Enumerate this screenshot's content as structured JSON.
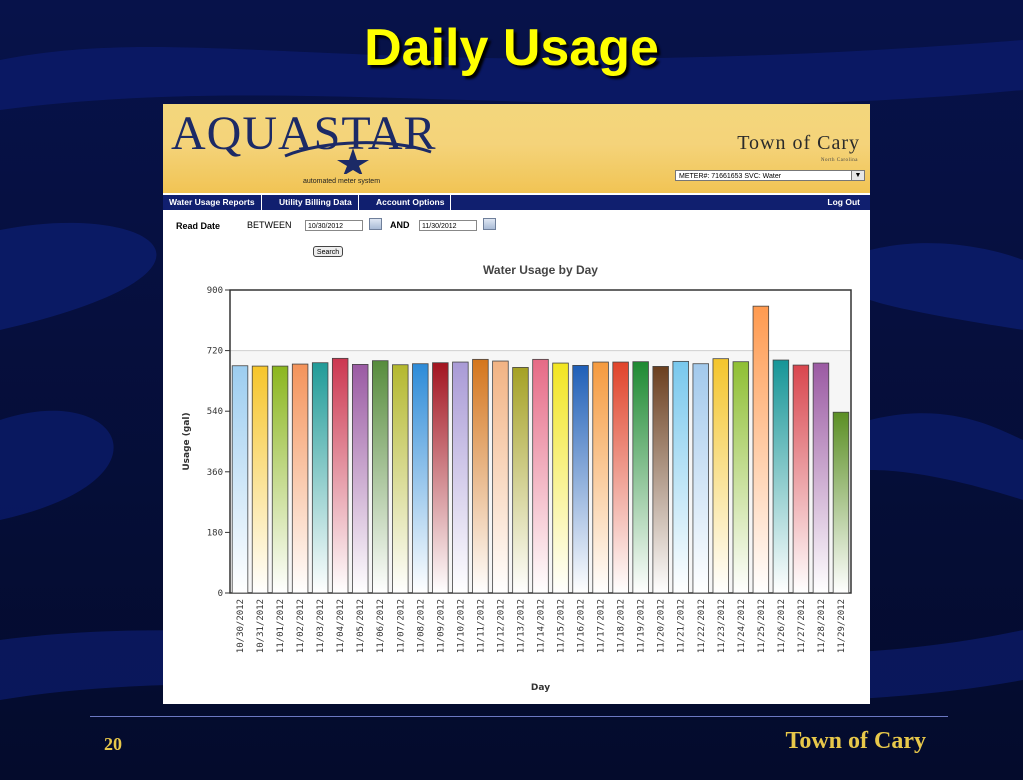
{
  "slide": {
    "title": "Daily Usage",
    "page_number": "20",
    "footer_brand": "Town of Cary"
  },
  "app": {
    "logo_text": "AQUASTAR",
    "logo_subtitle": "automated meter system",
    "town_name": "Town of Cary",
    "town_state": "North Carolina",
    "meter_select_value": "METER#: 71661653 SVC: Water"
  },
  "nav": {
    "items": [
      "Water Usage Reports",
      "Utility Billing Data",
      "Account Options"
    ],
    "logout": "Log Out"
  },
  "filter": {
    "read_date_label": "Read Date",
    "between_label": "BETWEEN",
    "start_date": "10/30/2012",
    "and_label": "AND",
    "end_date": "11/30/2012",
    "search_label": "Search"
  },
  "colors": {
    "background": "#06103e",
    "title": "#ffff00",
    "banner": "#f3d37a",
    "nav": "#101f6f",
    "footer_text": "#e8c84a"
  },
  "chart_data": {
    "type": "bar",
    "title": "Water Usage by Day",
    "xlabel": "Day",
    "ylabel": "Usage (gal)",
    "ylim": [
      0,
      900
    ],
    "yticks": [
      0,
      180,
      360,
      540,
      720,
      900
    ],
    "grid": "horizontal line at 720",
    "categories": [
      "10/30/2012",
      "10/31/2012",
      "11/01/2012",
      "11/02/2012",
      "11/03/2012",
      "11/04/2012",
      "11/05/2012",
      "11/06/2012",
      "11/07/2012",
      "11/08/2012",
      "11/09/2012",
      "11/10/2012",
      "11/11/2012",
      "11/12/2012",
      "11/13/2012",
      "11/14/2012",
      "11/15/2012",
      "11/16/2012",
      "11/17/2012",
      "11/18/2012",
      "11/19/2012",
      "11/20/2012",
      "11/21/2012",
      "11/22/2012",
      "11/23/2012",
      "11/24/2012",
      "11/25/2012",
      "11/26/2012",
      "11/27/2012",
      "11/28/2012",
      "11/29/2012"
    ],
    "values": [
      675,
      674,
      674,
      680,
      684,
      697,
      679,
      690,
      678,
      681,
      684,
      686,
      694,
      689,
      670,
      694,
      683,
      676,
      686,
      686,
      687,
      673,
      688,
      681,
      696,
      687,
      852,
      692,
      677,
      683,
      537
    ],
    "bar_colors": [
      "#9ccdf0",
      "#f6c52a",
      "#8bb61e",
      "#f4935a",
      "#209b98",
      "#cc3750",
      "#9a5aa3",
      "#578c3c",
      "#b4b82e",
      "#2d8bd8",
      "#a31520",
      "#a99ad6",
      "#d4751c",
      "#f2b383",
      "#a5a124",
      "#e66a86",
      "#f2e521",
      "#1f5fb8",
      "#f59a3e",
      "#e0432a",
      "#1e8a32",
      "#6b3f1f",
      "#78c8ed",
      "#a2c9ec",
      "#f4c52c",
      "#8fbf33",
      "#ff9a4f",
      "#159597",
      "#d9464e",
      "#9b5aa3",
      "#5b8f24"
    ]
  }
}
